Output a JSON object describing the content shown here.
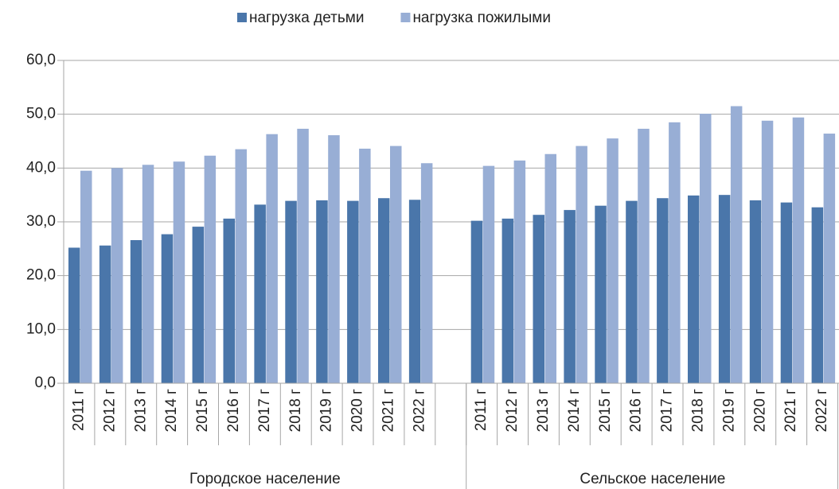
{
  "chart_data": {
    "type": "bar",
    "groups": [
      {
        "name": "Городское население",
        "categories": [
          "2011 г",
          "2012 г",
          "2013 г",
          "2014 г",
          "2015 г",
          "2016 г",
          "2017 г",
          "2018 г",
          "2019 г",
          "2020 г",
          "2021 г",
          "2022 г"
        ]
      },
      {
        "name": "Сельское население",
        "categories": [
          "2011 г",
          "2012 г",
          "2013 г",
          "2014 г",
          "2015 г",
          "2016 г",
          "2017 г",
          "2018 г",
          "2019 г",
          "2020 г",
          "2021 г",
          "2022 г"
        ]
      }
    ],
    "series": [
      {
        "name": "нагрузка детьми",
        "color": "#4a76aa",
        "values": [
          25.2,
          25.6,
          26.6,
          27.7,
          29.1,
          30.6,
          33.2,
          33.9,
          34.0,
          33.9,
          34.4,
          34.1,
          30.2,
          30.6,
          31.3,
          32.2,
          33.0,
          33.9,
          34.4,
          34.9,
          35.0,
          34.0,
          33.6,
          32.7
        ]
      },
      {
        "name": "нагрузка пожилыми",
        "color": "#98aed5",
        "values": [
          39.5,
          40.0,
          40.6,
          41.2,
          42.3,
          43.5,
          46.3,
          47.3,
          46.1,
          43.6,
          44.1,
          40.9,
          40.4,
          41.4,
          42.6,
          44.1,
          45.5,
          47.3,
          48.5,
          50.1,
          51.5,
          48.8,
          49.4,
          46.4
        ]
      }
    ],
    "ylim": [
      0,
      60
    ],
    "yticks": [
      {
        "value": 0,
        "label": "0,0"
      },
      {
        "value": 10,
        "label": "10,0"
      },
      {
        "value": 20,
        "label": "20,0"
      },
      {
        "value": 30,
        "label": "30,0"
      },
      {
        "value": 40,
        "label": "40,0"
      },
      {
        "value": 50,
        "label": "50,0"
      },
      {
        "value": 60,
        "label": "60,0"
      }
    ],
    "grid": true,
    "legend": "top"
  }
}
